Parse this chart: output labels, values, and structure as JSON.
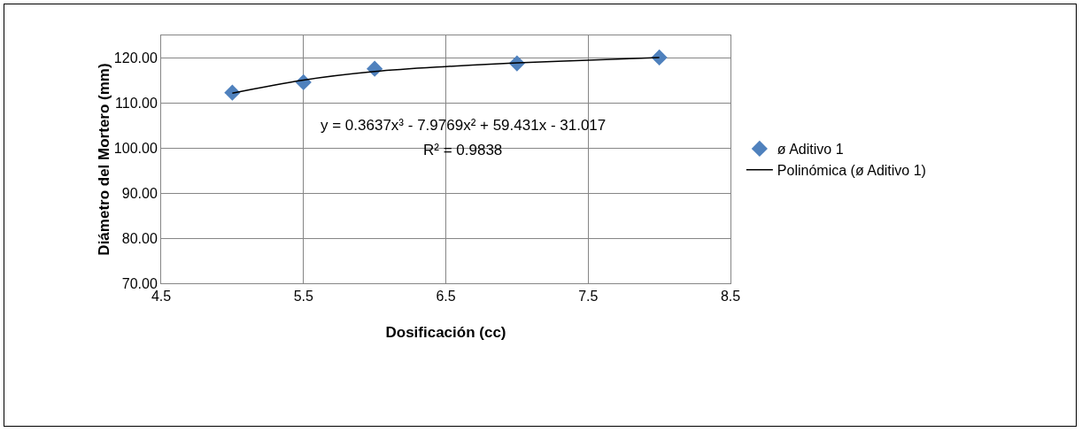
{
  "chart_data": {
    "type": "scatter",
    "xlabel": "Dosificación (cc)",
    "ylabel": "Diámetro del Mortero (mm)",
    "series": [
      {
        "name": "ø Aditivo 1",
        "color": "#4f81bd",
        "marker": "diamond",
        "x": [
          5,
          5.5,
          6,
          7,
          8
        ],
        "values": [
          112.3,
          114.6,
          117.6,
          118.8,
          120.1
        ]
      },
      {
        "name": "Polinómica (ø Aditivo 1)",
        "type": "line",
        "color": "#000000",
        "marker": "none",
        "line_style": "solid",
        "x": [
          5,
          5.5,
          6,
          6.5,
          7,
          7.5,
          8
        ],
        "values": [
          112.2,
          115.1,
          117,
          118.1,
          118.9,
          119.5,
          120.1
        ]
      }
    ],
    "annotations": [
      "y = 0.3637x³ - 7.9769x² + 59.431x - 31.017",
      "R² = 0.9838"
    ],
    "xlim": [
      4.5,
      8.5
    ],
    "xticks": [
      4.5,
      5.5,
      6.5,
      7.5,
      8.5
    ],
    "ylim": [
      70,
      125
    ],
    "yticks": [
      {
        "value": 70,
        "label": "70.00"
      },
      {
        "value": 80,
        "label": "80.00"
      },
      {
        "value": 90,
        "label": "90.00"
      },
      {
        "value": 100,
        "label": "100.00"
      },
      {
        "value": 110,
        "label": "110.00"
      },
      {
        "value": 120,
        "label": "120.00"
      }
    ],
    "grid": true,
    "legend": "right"
  }
}
